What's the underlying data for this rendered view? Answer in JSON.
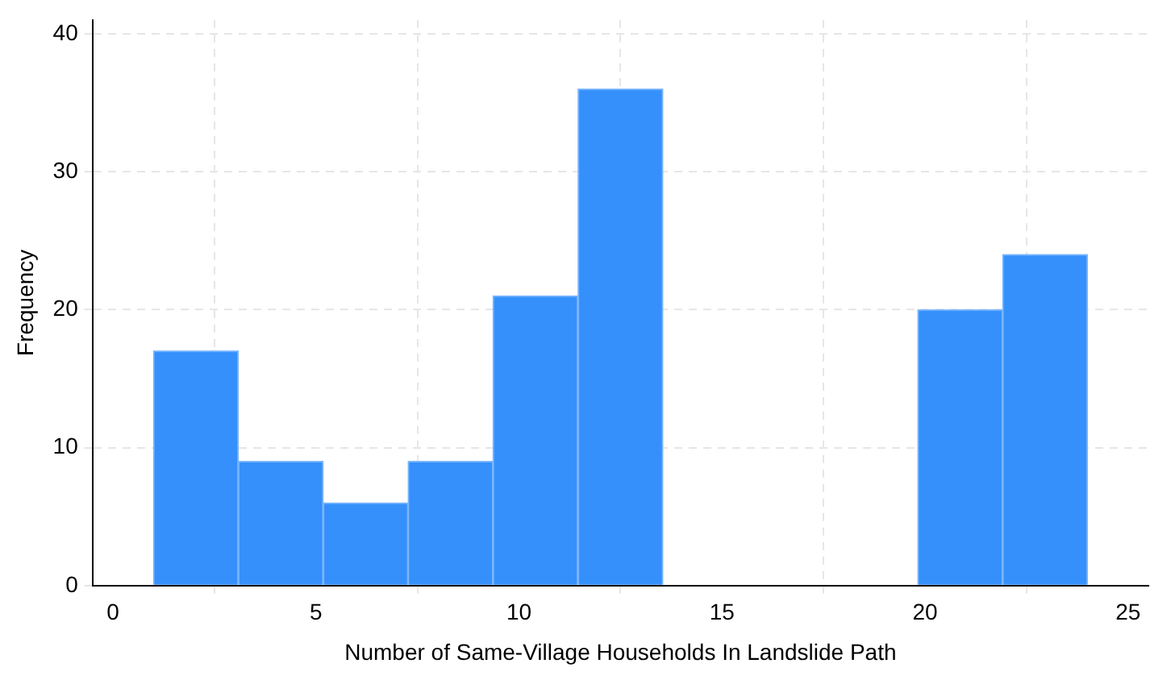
{
  "chart_data": {
    "type": "histogram",
    "xlabel": "Number of Same-Village Households In Landslide Path",
    "ylabel": "Frequency",
    "bins": [
      1,
      3.09,
      5.18,
      7.27,
      9.36,
      11.45,
      13.55,
      15.64,
      17.73,
      19.82,
      21.91,
      24
    ],
    "values": [
      17,
      9,
      6,
      9,
      21,
      36,
      0,
      0,
      0,
      20,
      24
    ],
    "color": "#3590fb",
    "xlim": [
      -0.5,
      25.5
    ],
    "xticks": [
      0,
      5,
      10,
      15,
      20,
      25
    ],
    "ylim": [
      0,
      41
    ],
    "yticks": [
      0,
      10,
      20,
      30,
      40
    ],
    "grid": true,
    "legend": false
  }
}
